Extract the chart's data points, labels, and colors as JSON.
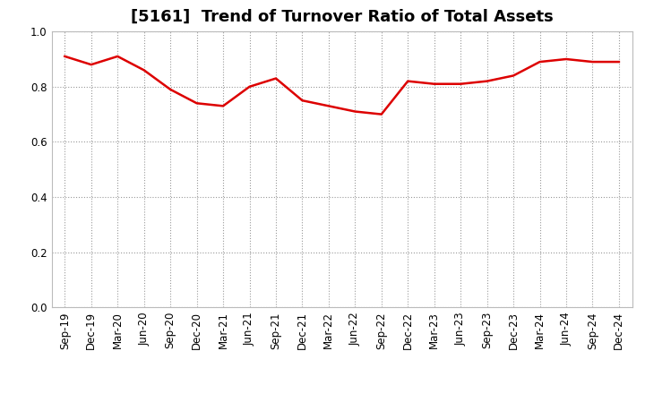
{
  "title": "[5161]  Trend of Turnover Ratio of Total Assets",
  "x_labels": [
    "Sep-19",
    "Dec-19",
    "Mar-20",
    "Jun-20",
    "Sep-20",
    "Dec-20",
    "Mar-21",
    "Jun-21",
    "Sep-21",
    "Dec-21",
    "Mar-22",
    "Jun-22",
    "Sep-22",
    "Dec-22",
    "Mar-23",
    "Jun-23",
    "Sep-23",
    "Dec-23",
    "Mar-24",
    "Jun-24",
    "Sep-24",
    "Dec-24"
  ],
  "y_values": [
    0.91,
    0.88,
    0.91,
    0.86,
    0.79,
    0.74,
    0.73,
    0.8,
    0.83,
    0.75,
    0.73,
    0.71,
    0.7,
    0.82,
    0.81,
    0.81,
    0.82,
    0.84,
    0.89,
    0.9,
    0.89,
    0.89
  ],
  "line_color": "#dd0000",
  "line_width": 1.8,
  "ylim": [
    0.0,
    1.0
  ],
  "yticks": [
    0.0,
    0.2,
    0.4,
    0.6,
    0.8,
    1.0
  ],
  "grid_color": "#999999",
  "bg_color": "#ffffff",
  "plot_bg_color": "#ffffff",
  "title_fontsize": 13,
  "tick_fontsize": 8.5
}
